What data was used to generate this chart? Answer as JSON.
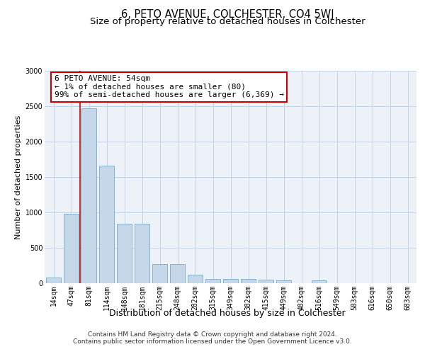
{
  "title": "6, PETO AVENUE, COLCHESTER, CO4 5WJ",
  "subtitle": "Size of property relative to detached houses in Colchester",
  "xlabel": "Distribution of detached houses by size in Colchester",
  "ylabel": "Number of detached properties",
  "categories": [
    "14sqm",
    "47sqm",
    "81sqm",
    "114sqm",
    "148sqm",
    "181sqm",
    "215sqm",
    "248sqm",
    "282sqm",
    "315sqm",
    "349sqm",
    "382sqm",
    "415sqm",
    "449sqm",
    "482sqm",
    "516sqm",
    "549sqm",
    "583sqm",
    "616sqm",
    "650sqm",
    "683sqm"
  ],
  "values": [
    80,
    980,
    2470,
    1660,
    840,
    840,
    270,
    270,
    120,
    60,
    60,
    60,
    55,
    40,
    0,
    40,
    0,
    0,
    0,
    0,
    0
  ],
  "bar_color": "#c5d8ea",
  "bar_edge_color": "#7aaac8",
  "grid_color": "#c5d5e5",
  "background_color": "#edf2f8",
  "annotation_line1": "6 PETO AVENUE: 54sqm",
  "annotation_line2": "← 1% of detached houses are smaller (80)",
  "annotation_line3": "99% of semi-detached houses are larger (6,369) →",
  "annotation_box_facecolor": "white",
  "annotation_box_edgecolor": "#cc0000",
  "red_line_x": 1.5,
  "ylim_min": 0,
  "ylim_max": 3000,
  "yticks": [
    0,
    500,
    1000,
    1500,
    2000,
    2500,
    3000
  ],
  "footer_line1": "Contains HM Land Registry data © Crown copyright and database right 2024.",
  "footer_line2": "Contains public sector information licensed under the Open Government Licence v3.0.",
  "title_fontsize": 10.5,
  "subtitle_fontsize": 9.5,
  "xlabel_fontsize": 9,
  "ylabel_fontsize": 8,
  "tick_fontsize": 7,
  "footer_fontsize": 6.5,
  "annotation_fontsize": 8
}
